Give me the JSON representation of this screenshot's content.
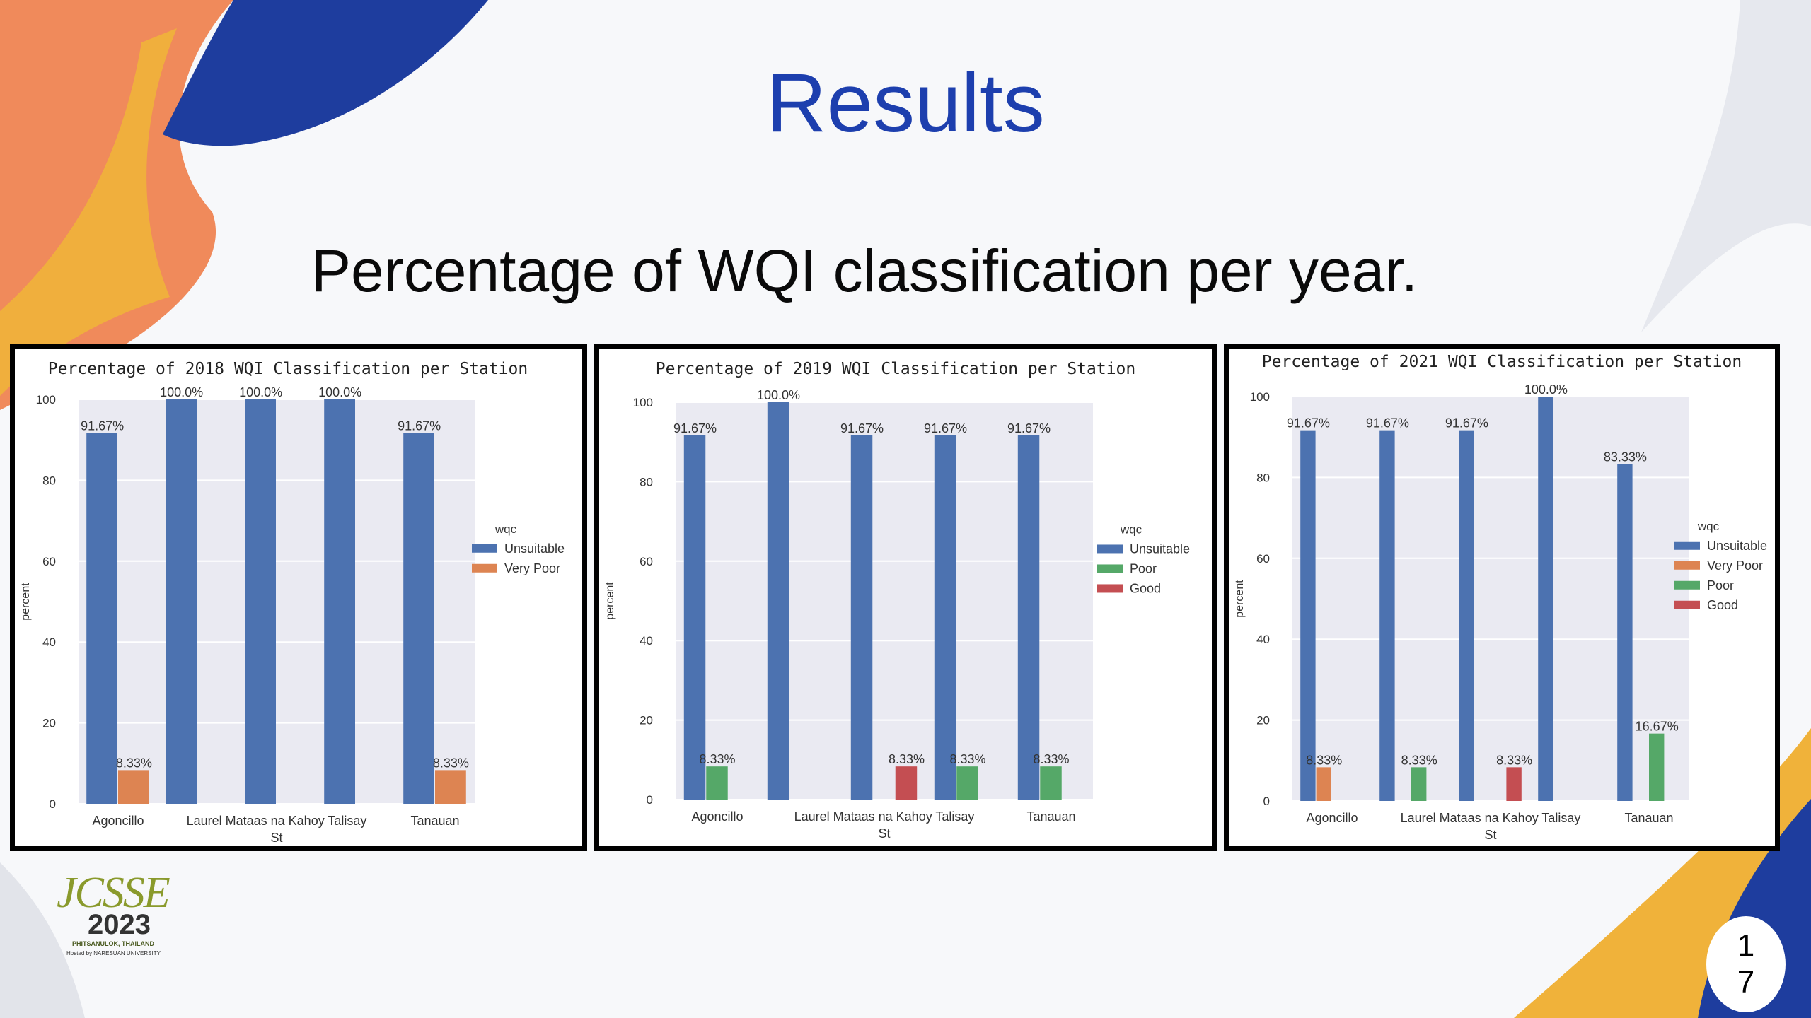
{
  "slide": {
    "title": "Results",
    "subtitle": "Percentage of WQI classification per year.",
    "page_number_line1": "1",
    "page_number_line2": "7"
  },
  "logo": {
    "text_top": "JCSSE",
    "year": "2023",
    "location": "PHITSANULOK, THAILAND",
    "host": "Hosted by NARESUAN UNIVERSITY"
  },
  "colors": {
    "Unsuitable": "#4c72b0",
    "Very Poor": "#dd8452",
    "Poor": "#55a868",
    "Good": "#c44e52",
    "plot_bg": "#eaeaf2",
    "title_blue": "#1d3fae"
  },
  "chart_data": [
    {
      "type": "bar",
      "title": "Percentage of 2018 WQI Classification per Station",
      "ylabel": "percent",
      "xlabel": "",
      "ylim": [
        0,
        100
      ],
      "yticks": [
        "0",
        "20",
        "40",
        "60",
        "80",
        "100"
      ],
      "categories": [
        "Agoncillo",
        "Laurel",
        "Mataas na Kahoy",
        "Talisay",
        "Tanauan"
      ],
      "tick_labels": [
        "Agoncillo",
        "Laurel Mataas na Kahoy Talisay",
        "St",
        "Tanauan"
      ],
      "legend_title": "wqc",
      "legend_position": "right",
      "grid": true,
      "series": [
        {
          "name": "Unsuitable",
          "values": [
            91.67,
            100.0,
            100.0,
            100.0,
            91.67
          ],
          "labels": [
            "91.67%",
            "100.0%",
            "100.0%",
            "100.0%",
            "91.67%"
          ]
        },
        {
          "name": "Very Poor",
          "values": [
            8.33,
            null,
            null,
            null,
            8.33
          ],
          "labels": [
            "8.33%",
            null,
            null,
            null,
            "8.33%"
          ]
        }
      ]
    },
    {
      "type": "bar",
      "title": "Percentage of 2019 WQI Classification per Station",
      "ylabel": "percent",
      "xlabel": "",
      "ylim": [
        0,
        100
      ],
      "yticks": [
        "0",
        "20",
        "40",
        "60",
        "80",
        "100"
      ],
      "categories": [
        "Agoncillo",
        "Laurel",
        "Mataas na Kahoy",
        "Talisay",
        "Tanauan"
      ],
      "tick_labels": [
        "Agoncillo",
        "Laurel Mataas na Kahoy Talisay",
        "St",
        "Tanauan"
      ],
      "legend_title": "wqc",
      "legend_position": "right",
      "grid": true,
      "series": [
        {
          "name": "Unsuitable",
          "values": [
            91.67,
            100.0,
            91.67,
            91.67,
            91.67
          ],
          "labels": [
            "91.67%",
            "100.0%",
            "91.67%",
            "91.67%",
            "91.67%"
          ]
        },
        {
          "name": "Poor",
          "values": [
            8.33,
            null,
            null,
            8.33,
            8.33
          ],
          "labels": [
            "8.33%",
            null,
            null,
            "8.33%",
            "8.33%"
          ]
        },
        {
          "name": "Good",
          "values": [
            null,
            null,
            8.33,
            null,
            null
          ],
          "labels": [
            null,
            null,
            "8.33%",
            null,
            null
          ]
        }
      ]
    },
    {
      "type": "bar",
      "title": "Percentage of 2021 WQI Classification per Station",
      "ylabel": "percent",
      "xlabel": "",
      "ylim": [
        0,
        100
      ],
      "yticks": [
        "0",
        "20",
        "40",
        "60",
        "80",
        "100"
      ],
      "categories": [
        "Agoncillo",
        "Laurel",
        "Mataas na Kahoy",
        "Talisay",
        "Tanauan"
      ],
      "tick_labels": [
        "Agoncillo",
        "Laurel Mataas na Kahoy Talisay",
        "St",
        "Tanauan"
      ],
      "legend_title": "wqc",
      "legend_position": "right",
      "grid": true,
      "series": [
        {
          "name": "Unsuitable",
          "values": [
            91.67,
            91.67,
            91.67,
            100.0,
            83.33
          ],
          "labels": [
            "91.67%",
            "91.67%",
            "91.67%",
            "100.0%",
            "83.33%"
          ]
        },
        {
          "name": "Very Poor",
          "values": [
            8.33,
            null,
            null,
            null,
            null
          ],
          "labels": [
            "8.33%",
            null,
            null,
            null,
            null
          ]
        },
        {
          "name": "Poor",
          "values": [
            null,
            8.33,
            null,
            null,
            16.67
          ],
          "labels": [
            null,
            "8.33%",
            null,
            null,
            "16.67%"
          ]
        },
        {
          "name": "Good",
          "values": [
            null,
            null,
            8.33,
            null,
            null
          ],
          "labels": [
            null,
            null,
            "8.33%",
            null,
            null
          ]
        }
      ]
    }
  ]
}
